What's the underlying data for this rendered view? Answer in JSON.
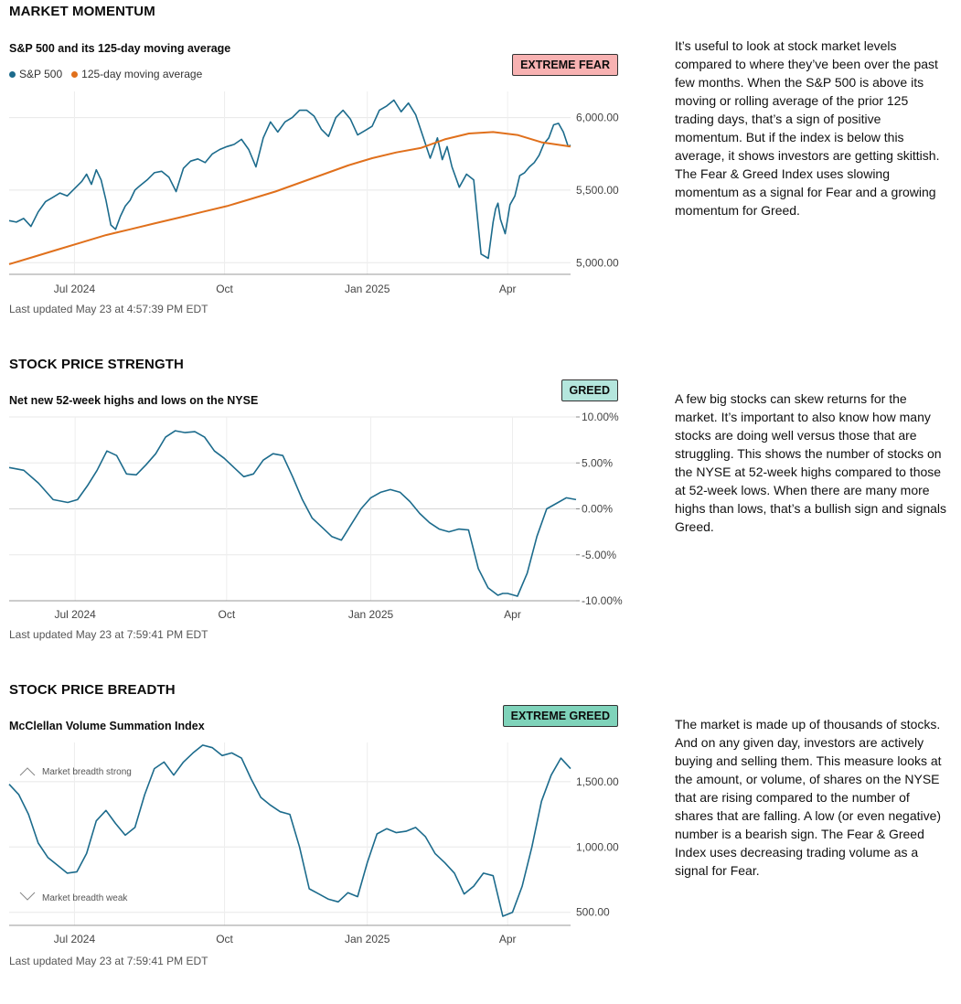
{
  "sections": [
    {
      "title": "MARKET MOMENTUM",
      "chart_title": "S&P 500 and its 125-day moving average",
      "badge": {
        "label": "EXTREME FEAR",
        "bg": "#f8b2b2"
      },
      "legend": [
        {
          "label": "S&P 500",
          "color": "#1c6b8c"
        },
        {
          "label": "125-day moving average",
          "color": "#e0701c"
        }
      ],
      "updated": "Last updated May 23 at 4:57:39 PM EDT",
      "description": "It’s useful to look at stock market levels compared to where they’ve been over the past few months. When the S&P 500 is above its moving or rolling average of the prior 125 trading days, that’s a sign of positive momentum. But if the index is below this average, it shows investors are getting skittish. The Fear & Greed Index uses slowing momentum as a signal for Fear and a growing momentum for Greed."
    },
    {
      "title": "STOCK PRICE STRENGTH",
      "chart_title": "Net new 52-week highs and lows on the NYSE",
      "badge": {
        "label": "GREED",
        "bg": "#b4e6dd"
      },
      "updated": "Last updated May 23 at 7:59:41 PM EDT",
      "description": "A few big stocks can skew returns for the market. It’s important to also know how many stocks are doing well versus those that are struggling. This shows the number of stocks on the NYSE at 52-week highs compared to those at 52-week lows. When there are many more highs than lows, that’s a bullish sign and signals Greed."
    },
    {
      "title": "STOCK PRICE BREADTH",
      "chart_title": "McClellan Volume Summation Index",
      "badge": {
        "label": "EXTREME GREED",
        "bg": "#7fd3ba"
      },
      "annotations": {
        "strong": "Market breadth strong",
        "weak": "Market breadth weak"
      },
      "updated": "Last updated May 23 at 7:59:41 PM EDT",
      "description": "The market is made up of thousands of stocks. And on any given day, investors are actively buying and selling them. This measure looks at the amount, or volume, of shares on the NYSE that are rising compared to the number of shares that are falling. A low (or even negative) number is a bearish sign. The Fear & Greed Index uses decreasing trading volume as a signal for Fear."
    }
  ],
  "chart_data": [
    {
      "type": "line",
      "title": "S&P 500 and its 125-day moving average",
      "x_ticks": [
        {
          "label": "Jul 2024",
          "x": 1.35
        },
        {
          "label": "Oct",
          "x": 4.45
        },
        {
          "label": "Jan 2025",
          "x": 7.4
        },
        {
          "label": "Apr",
          "x": 10.3
        }
      ],
      "y_ticks": [
        "5,000.00",
        "5,500.00",
        "6,000.00"
      ],
      "y_tick_values": [
        5000,
        5500,
        6000
      ],
      "xlim": [
        0,
        11.6
      ],
      "ylim": [
        4920,
        6180
      ],
      "series": [
        {
          "name": "S&P 500",
          "color": "#1c6b8c",
          "x": [
            0,
            0.15,
            0.3,
            0.45,
            0.6,
            0.75,
            0.9,
            1.05,
            1.2,
            1.35,
            1.5,
            1.6,
            1.7,
            1.8,
            1.9,
            2.0,
            2.1,
            2.2,
            2.3,
            2.4,
            2.5,
            2.6,
            2.7,
            2.85,
            3.0,
            3.15,
            3.3,
            3.45,
            3.6,
            3.75,
            3.9,
            4.05,
            4.2,
            4.35,
            4.5,
            4.65,
            4.8,
            4.95,
            5.1,
            5.25,
            5.4,
            5.55,
            5.7,
            5.85,
            6.0,
            6.15,
            6.3,
            6.45,
            6.6,
            6.75,
            6.9,
            7.05,
            7.2,
            7.35,
            7.5,
            7.65,
            7.8,
            7.95,
            8.1,
            8.25,
            8.4,
            8.55,
            8.7,
            8.85,
            8.95,
            9.05,
            9.15,
            9.3,
            9.45,
            9.6,
            9.75,
            9.9,
            10.0,
            10.05,
            10.1,
            10.15,
            10.25,
            10.35,
            10.45,
            10.55,
            10.65,
            10.75,
            10.85,
            10.95,
            11.05,
            11.15,
            11.25,
            11.35,
            11.45,
            11.55,
            11.6
          ],
          "values": [
            5290,
            5280,
            5305,
            5250,
            5350,
            5420,
            5450,
            5480,
            5460,
            5510,
            5560,
            5610,
            5540,
            5640,
            5570,
            5430,
            5260,
            5230,
            5320,
            5390,
            5430,
            5500,
            5530,
            5570,
            5620,
            5630,
            5590,
            5490,
            5650,
            5700,
            5715,
            5690,
            5750,
            5780,
            5800,
            5815,
            5850,
            5780,
            5660,
            5860,
            5970,
            5900,
            5970,
            6000,
            6050,
            6050,
            6010,
            5920,
            5870,
            6000,
            6050,
            5990,
            5880,
            5910,
            5940,
            6050,
            6080,
            6120,
            6040,
            6100,
            6020,
            5870,
            5720,
            5860,
            5710,
            5800,
            5660,
            5520,
            5610,
            5570,
            5060,
            5030,
            5280,
            5370,
            5410,
            5300,
            5200,
            5400,
            5460,
            5600,
            5620,
            5660,
            5690,
            5740,
            5820,
            5860,
            5950,
            5960,
            5900,
            5800,
            5810
          ]
        },
        {
          "name": "125-day moving average",
          "color": "#e0701c",
          "x": [
            0,
            0.5,
            1.0,
            1.5,
            2.0,
            2.5,
            3.0,
            3.5,
            4.0,
            4.5,
            5.0,
            5.5,
            6.0,
            6.5,
            7.0,
            7.5,
            8.0,
            8.5,
            9.0,
            9.5,
            10.0,
            10.5,
            11.0,
            11.6
          ],
          "values": [
            4990,
            5040,
            5090,
            5140,
            5190,
            5230,
            5270,
            5310,
            5350,
            5390,
            5440,
            5490,
            5550,
            5610,
            5670,
            5720,
            5760,
            5790,
            5850,
            5890,
            5900,
            5880,
            5830,
            5800
          ]
        }
      ]
    },
    {
      "type": "line",
      "title": "Net new 52-week highs and lows on the NYSE",
      "x_ticks": [
        {
          "label": "Jul 2024",
          "x": 1.35
        },
        {
          "label": "Oct",
          "x": 4.45
        },
        {
          "label": "Jan 2025",
          "x": 7.4
        },
        {
          "label": "Apr",
          "x": 10.3
        }
      ],
      "y_ticks": [
        "-10.00%",
        "-5.00%",
        "0.00%",
        "5.00%",
        "10.00%"
      ],
      "y_tick_values": [
        -10,
        -5,
        0,
        5,
        10
      ],
      "xlim": [
        0,
        11.6
      ],
      "ylim": [
        -10,
        10
      ],
      "series": [
        {
          "name": "Net new highs/lows",
          "color": "#1c6b8c",
          "x": [
            0,
            0.3,
            0.6,
            0.9,
            1.2,
            1.4,
            1.6,
            1.8,
            2.0,
            2.2,
            2.4,
            2.6,
            2.8,
            3.0,
            3.2,
            3.4,
            3.6,
            3.8,
            4.0,
            4.2,
            4.4,
            4.6,
            4.8,
            5.0,
            5.2,
            5.4,
            5.6,
            5.8,
            6.0,
            6.2,
            6.4,
            6.6,
            6.8,
            7.0,
            7.2,
            7.4,
            7.6,
            7.8,
            8.0,
            8.2,
            8.4,
            8.6,
            8.8,
            9.0,
            9.2,
            9.4,
            9.6,
            9.8,
            10.0,
            10.1,
            10.2,
            10.4,
            10.6,
            10.8,
            11.0,
            11.2,
            11.4,
            11.6
          ],
          "values": [
            4.5,
            4.2,
            2.8,
            1.0,
            0.7,
            1.0,
            2.5,
            4.2,
            6.3,
            5.8,
            3.8,
            3.7,
            4.8,
            6.0,
            7.8,
            8.5,
            8.3,
            8.4,
            7.8,
            6.3,
            5.5,
            4.5,
            3.5,
            3.8,
            5.3,
            6.0,
            5.8,
            3.5,
            1.0,
            -1.0,
            -2.0,
            -3.0,
            -3.4,
            -1.7,
            0.0,
            1.2,
            1.8,
            2.1,
            1.8,
            0.8,
            -0.5,
            -1.5,
            -2.2,
            -2.5,
            -2.2,
            -2.3,
            -6.5,
            -8.6,
            -9.4,
            -9.2,
            -9.2,
            -9.5,
            -7.0,
            -3.0,
            0.0,
            0.6,
            1.2,
            1.0
          ]
        }
      ]
    },
    {
      "type": "line",
      "title": "McClellan Volume Summation Index",
      "x_ticks": [
        {
          "label": "Jul 2024",
          "x": 1.35
        },
        {
          "label": "Oct",
          "x": 4.45
        },
        {
          "label": "Jan 2025",
          "x": 7.4
        },
        {
          "label": "Apr",
          "x": 10.3
        }
      ],
      "y_ticks": [
        "500.00",
        "1,000.00",
        "1,500.00"
      ],
      "y_tick_values": [
        500,
        1000,
        1500
      ],
      "xlim": [
        0,
        11.6
      ],
      "ylim": [
        400,
        1800
      ],
      "series": [
        {
          "name": "McClellan Volume Summation Index",
          "color": "#1c6b8c",
          "x": [
            0,
            0.2,
            0.4,
            0.6,
            0.8,
            1.0,
            1.2,
            1.4,
            1.6,
            1.8,
            2.0,
            2.2,
            2.4,
            2.6,
            2.8,
            3.0,
            3.2,
            3.4,
            3.6,
            3.8,
            4.0,
            4.2,
            4.4,
            4.6,
            4.8,
            5.0,
            5.2,
            5.4,
            5.6,
            5.8,
            6.0,
            6.2,
            6.4,
            6.6,
            6.8,
            7.0,
            7.2,
            7.4,
            7.6,
            7.8,
            8.0,
            8.2,
            8.4,
            8.6,
            8.8,
            9.0,
            9.2,
            9.4,
            9.6,
            9.8,
            10.0,
            10.2,
            10.4,
            10.6,
            10.8,
            11.0,
            11.2,
            11.4,
            11.6
          ],
          "values": [
            1480,
            1400,
            1250,
            1030,
            920,
            860,
            800,
            810,
            950,
            1200,
            1280,
            1180,
            1090,
            1150,
            1400,
            1600,
            1650,
            1550,
            1650,
            1720,
            1780,
            1760,
            1700,
            1720,
            1680,
            1520,
            1380,
            1320,
            1270,
            1250,
            1000,
            680,
            640,
            600,
            580,
            650,
            620,
            880,
            1100,
            1140,
            1110,
            1120,
            1150,
            1080,
            950,
            880,
            800,
            640,
            700,
            800,
            780,
            470,
            500,
            700,
            1000,
            1350,
            1550,
            1680,
            1600
          ]
        }
      ]
    }
  ]
}
